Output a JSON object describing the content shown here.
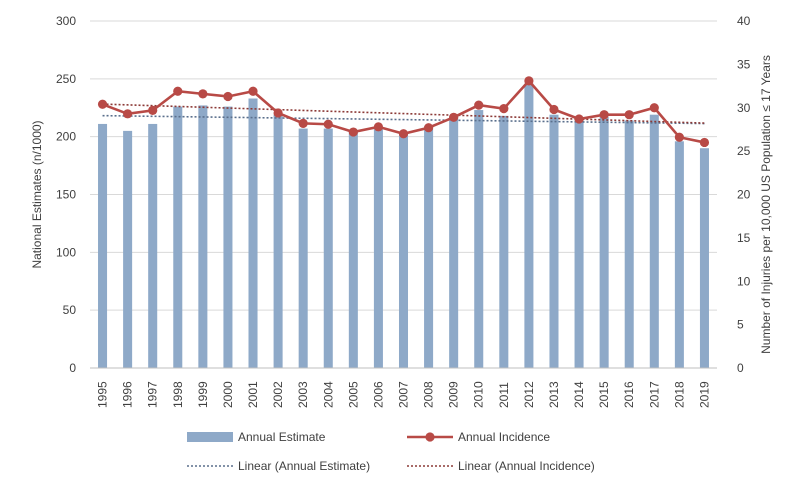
{
  "chart_data": {
    "type": "bar",
    "categories": [
      "1995",
      "1996",
      "1997",
      "1998",
      "1999",
      "2000",
      "2001",
      "2002",
      "2003",
      "2004",
      "2005",
      "2006",
      "2007",
      "2008",
      "2009",
      "2010",
      "2011",
      "2012",
      "2013",
      "2014",
      "2015",
      "2016",
      "2017",
      "2018",
      "2019"
    ],
    "series": [
      {
        "name": "Annual Estimate",
        "type": "bar",
        "axis": "left",
        "color": "#8EA9C8",
        "values": [
          211,
          205,
          211,
          226,
          227,
          226,
          233,
          219,
          207,
          207,
          204,
          207,
          203,
          209,
          218,
          223,
          218,
          246,
          219,
          214,
          217,
          214,
          219,
          196,
          190
        ]
      },
      {
        "name": "Annual Incidence",
        "type": "line",
        "axis": "right",
        "color": "#B84A46",
        "values": [
          30.4,
          29.3,
          29.7,
          31.9,
          31.6,
          31.3,
          31.9,
          29.4,
          28.2,
          28.1,
          27.2,
          27.8,
          27.0,
          27.7,
          28.9,
          30.3,
          29.9,
          33.1,
          29.8,
          28.7,
          29.2,
          29.2,
          30.0,
          26.6,
          26.0
        ]
      }
    ],
    "trendlines": [
      {
        "name": "Linear (Annual Estimate)",
        "color": "#8EA9C8",
        "of_series": "Annual Estimate"
      },
      {
        "name": "Linear (Annual Incidence)",
        "color": "#B84A46",
        "of_series": "Annual Incidence"
      }
    ],
    "ylabel": "National Estimates (n/1000)",
    "ylabel_right": "Number of Injuries per 10,000 US Population ≤ 17 Years",
    "ylim": [
      0,
      300
    ],
    "ylim_right": [
      0,
      40
    ],
    "yticks": [
      "0",
      "50",
      "100",
      "150",
      "200",
      "250",
      "300"
    ],
    "yticks_right": [
      "0",
      "5",
      "10",
      "15",
      "20",
      "25",
      "30",
      "35",
      "40"
    ],
    "grid": true,
    "legend_position": "bottom"
  }
}
